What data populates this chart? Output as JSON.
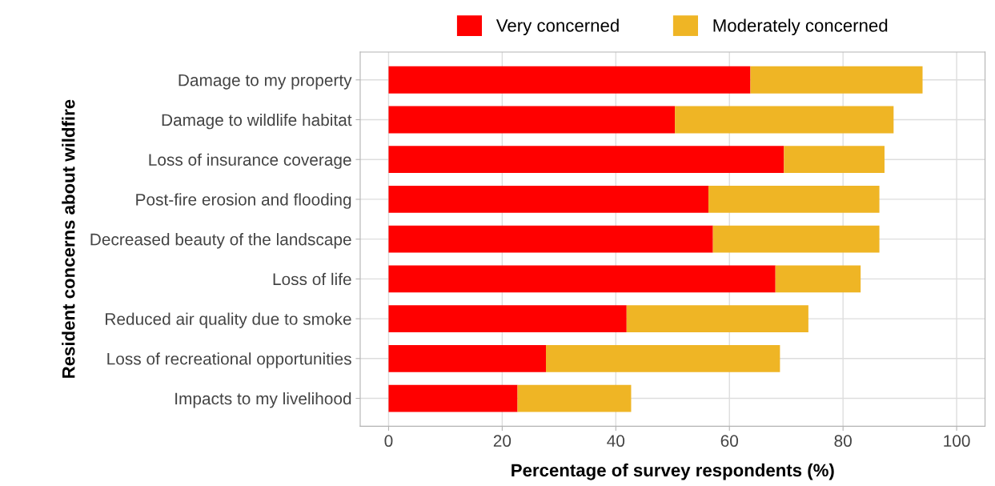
{
  "chart_data": {
    "type": "bar",
    "orientation": "horizontal",
    "stacked": true,
    "xlabel": "Percentage of survey respondents (%)",
    "ylabel": "Resident concerns about wildfire",
    "categories": [
      "Damage to my property",
      "Damage to wildlife habitat",
      "Loss of insurance coverage",
      "Post-fire erosion and flooding",
      "Decreased beauty of the landscape",
      "Loss of life",
      "Reduced air quality due to smoke",
      "Loss of recreational opportunities",
      "Impacts to my livelihood"
    ],
    "series": [
      {
        "name": "Very concerned",
        "color": "#ff0000",
        "values": [
          63.7,
          50.4,
          69.6,
          56.3,
          57.1,
          68.1,
          41.9,
          27.7,
          22.7
        ]
      },
      {
        "name": "Moderately concerned",
        "color": "#efb525",
        "values": [
          30.3,
          38.5,
          17.7,
          30.1,
          29.3,
          15.0,
          32.0,
          41.2,
          20.0
        ]
      }
    ],
    "xlim": [
      -5,
      105
    ],
    "xticks": [
      0,
      20,
      40,
      60,
      80,
      100
    ],
    "grid": true,
    "legend": "top"
  }
}
